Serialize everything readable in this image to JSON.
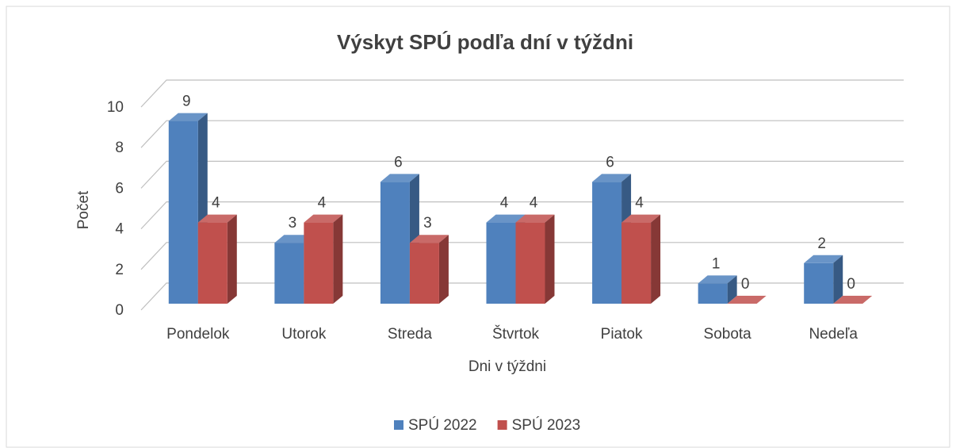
{
  "chart_data": {
    "type": "bar3d",
    "title": "Výskyt SPÚ podľa dní v týždni",
    "x_label": "Dni v týždni",
    "y_label": "Počet",
    "categories": [
      "Pondelok",
      "Utorok",
      "Streda",
      "Štvrtok",
      "Piatok",
      "Sobota",
      "Nedeľa"
    ],
    "series": [
      {
        "name": "SPÚ 2022",
        "color": "#4f81bd",
        "values": [
          9,
          3,
          6,
          4,
          6,
          1,
          2
        ]
      },
      {
        "name": "SPÚ 2023",
        "color": "#c0504d",
        "values": [
          4,
          4,
          3,
          4,
          4,
          0,
          0
        ]
      }
    ],
    "ylim": [
      0,
      10
    ],
    "yticks": [
      0,
      2,
      4,
      6,
      8,
      10
    ],
    "grid": true,
    "legend": "bottom"
  }
}
